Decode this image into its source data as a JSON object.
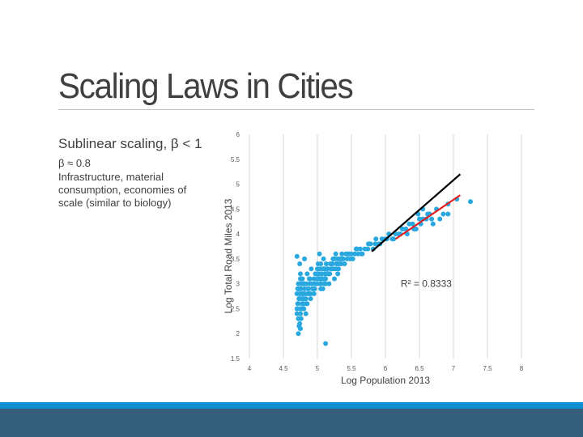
{
  "slide": {
    "title": "Scaling Laws in Cities",
    "heading": "Sublinear scaling, β < 1",
    "beta": "β ≈ 0.8",
    "description": "Infrastructure, material consumption, economies of scale (similar to biology)"
  },
  "colors": {
    "points": "#29a8e0",
    "black_line": "#000000",
    "red_line": "#e02020",
    "grid": "#d9d9d9",
    "band_light": "#0f8fd1",
    "band_dark": "#345e7a"
  },
  "chart_data": {
    "type": "scatter",
    "xlabel": "Log Population 2013",
    "ylabel": "Log Total Road Miles 2013",
    "xlim": [
      4,
      8
    ],
    "ylim": [
      1.5,
      6
    ],
    "xticks": [
      "4",
      "4.5",
      "5",
      "5.5",
      "6",
      "6.5",
      "7",
      "7.5",
      "8"
    ],
    "yticks": [
      "1.5",
      "2",
      "2.5",
      "3",
      "3.5",
      "4",
      "4.5",
      "5",
      "5.5",
      "6"
    ],
    "grid": "vertical",
    "annotation": "R² = 0.8333",
    "lines": [
      {
        "color": "black",
        "x": [
          5.8,
          7.1
        ],
        "y": [
          3.65,
          5.2
        ]
      },
      {
        "color": "red",
        "x": [
          6.15,
          7.1
        ],
        "y": [
          3.9,
          4.78
        ]
      }
    ],
    "points": {
      "x": [
        4.72,
        4.74,
        4.76,
        4.78,
        4.8,
        4.7,
        4.73,
        4.75,
        4.77,
        4.79,
        4.71,
        4.74,
        4.76,
        4.78,
        4.8,
        4.72,
        4.75,
        4.77,
        4.79,
        4.81,
        4.7,
        4.73,
        4.76,
        4.78,
        4.82,
        4.84,
        4.86,
        4.88,
        4.9,
        4.92,
        4.85,
        4.87,
        4.89,
        4.91,
        4.93,
        4.95,
        4.97,
        4.99,
        5.01,
        5.03,
        4.96,
        4.98,
        5.0,
        5.02,
        5.04,
        5.06,
        5.08,
        5.1,
        5.12,
        5.14,
        5.05,
        5.07,
        5.09,
        5.11,
        5.13,
        5.15,
        5.17,
        5.19,
        5.21,
        5.23,
        5.18,
        5.2,
        5.22,
        5.24,
        5.26,
        5.28,
        5.3,
        5.32,
        5.34,
        5.36,
        5.27,
        5.29,
        5.31,
        5.33,
        5.35,
        5.38,
        5.4,
        5.42,
        5.44,
        5.46,
        5.48,
        5.5,
        5.52,
        5.55,
        5.58,
        5.6,
        5.63,
        5.66,
        5.7,
        5.74,
        5.78,
        5.82,
        5.86,
        5.9,
        5.95,
        6.0,
        6.05,
        6.1,
        6.15,
        6.2,
        6.25,
        6.3,
        6.35,
        6.4,
        6.45,
        6.5,
        6.55,
        6.62,
        6.68,
        6.75,
        6.85,
        6.92,
        7.05,
        4.72,
        4.75,
        4.8,
        4.85,
        4.95,
        5.05,
        5.1,
        4.74,
        4.78,
        4.9,
        5.0,
        5.15,
        5.25,
        4.76,
        4.83,
        4.88,
        5.08,
        5.2,
        4.72,
        4.8,
        4.95,
        5.02,
        5.12,
        5.3,
        4.73,
        4.77,
        4.86,
        4.98,
        5.06,
        5.14,
        4.71,
        4.79,
        4.84,
        4.93,
        5.04,
        4.75,
        4.81,
        4.89,
        5.01,
        5.11,
        5.22,
        5.35,
        5.45,
        5.57,
        5.65,
        5.75,
        5.85,
        5.92,
        6.02,
        6.12,
        6.22,
        6.32,
        6.42,
        6.52,
        6.6,
        6.7,
        6.8,
        4.72,
        5.12,
        4.75,
        5.03,
        6.48,
        6.92,
        7.25,
        6.55,
        6.3,
        6.65,
        4.7,
        4.74,
        4.76,
        4.81,
        4.83,
        4.91,
        4.96,
        5.09,
        5.17,
        5.27,
        5.37
      ],
      "y": [
        2.9,
        2.7,
        3.0,
        2.8,
        2.6,
        2.5,
        2.9,
        3.1,
        2.7,
        3.0,
        2.6,
        2.8,
        2.9,
        3.1,
        2.7,
        3.0,
        2.5,
        2.8,
        3.0,
        2.9,
        2.4,
        2.7,
        3.0,
        2.6,
        2.8,
        3.0,
        2.9,
        3.1,
        2.8,
        3.0,
        3.2,
        2.9,
        3.1,
        3.0,
        2.9,
        3.1,
        3.2,
        3.0,
        3.2,
        3.1,
        3.0,
        3.2,
        3.3,
        3.1,
        3.0,
        3.2,
        3.3,
        3.1,
        3.2,
        3.3,
        3.0,
        3.1,
        3.3,
        3.2,
        3.4,
        3.3,
        3.2,
        3.4,
        3.3,
        3.5,
        3.2,
        3.3,
        3.4,
        3.3,
        3.5,
        3.4,
        3.5,
        3.4,
        3.5,
        3.6,
        3.3,
        3.4,
        3.3,
        3.5,
        3.4,
        3.5,
        3.4,
        3.6,
        3.5,
        3.6,
        3.5,
        3.6,
        3.5,
        3.6,
        3.7,
        3.6,
        3.7,
        3.6,
        3.7,
        3.7,
        3.8,
        3.7,
        3.9,
        3.8,
        3.9,
        3.9,
        4.0,
        3.9,
        4.0,
        4.0,
        4.1,
        4.1,
        4.2,
        4.2,
        4.1,
        4.3,
        4.3,
        4.4,
        4.3,
        4.5,
        4.4,
        4.6,
        4.7,
        2.3,
        2.4,
        2.5,
        2.6,
        2.8,
        2.9,
        3.0,
        2.2,
        2.6,
        2.7,
        3.1,
        3.2,
        3.1,
        2.5,
        2.7,
        2.8,
        2.9,
        3.3,
        2.6,
        2.5,
        2.9,
        3.2,
        3.0,
        3.2,
        2.7,
        2.5,
        2.8,
        3.0,
        3.1,
        3.3,
        2.9,
        2.8,
        2.6,
        2.9,
        3.3,
        3.2,
        3.0,
        3.0,
        3.4,
        3.3,
        3.4,
        3.5,
        3.6,
        3.7,
        3.6,
        3.8,
        3.8,
        3.8,
        3.9,
        3.9,
        4.0,
        4.0,
        4.1,
        4.2,
        4.3,
        4.2,
        4.3,
        2.0,
        3.1,
        2.1,
        3.6,
        4.4,
        4.4,
        4.65,
        4.5,
        4.1,
        4.4,
        2.8,
        3.4,
        2.3,
        3.5,
        2.4,
        3.3,
        2.9,
        3.5,
        3.0,
        3.6,
        3.5
      ]
    },
    "outliers": {
      "x": [
        4.7,
        5.12,
        4.73,
        5.05
      ],
      "y": [
        3.55,
        1.8,
        2.15,
        3.4
      ]
    }
  }
}
